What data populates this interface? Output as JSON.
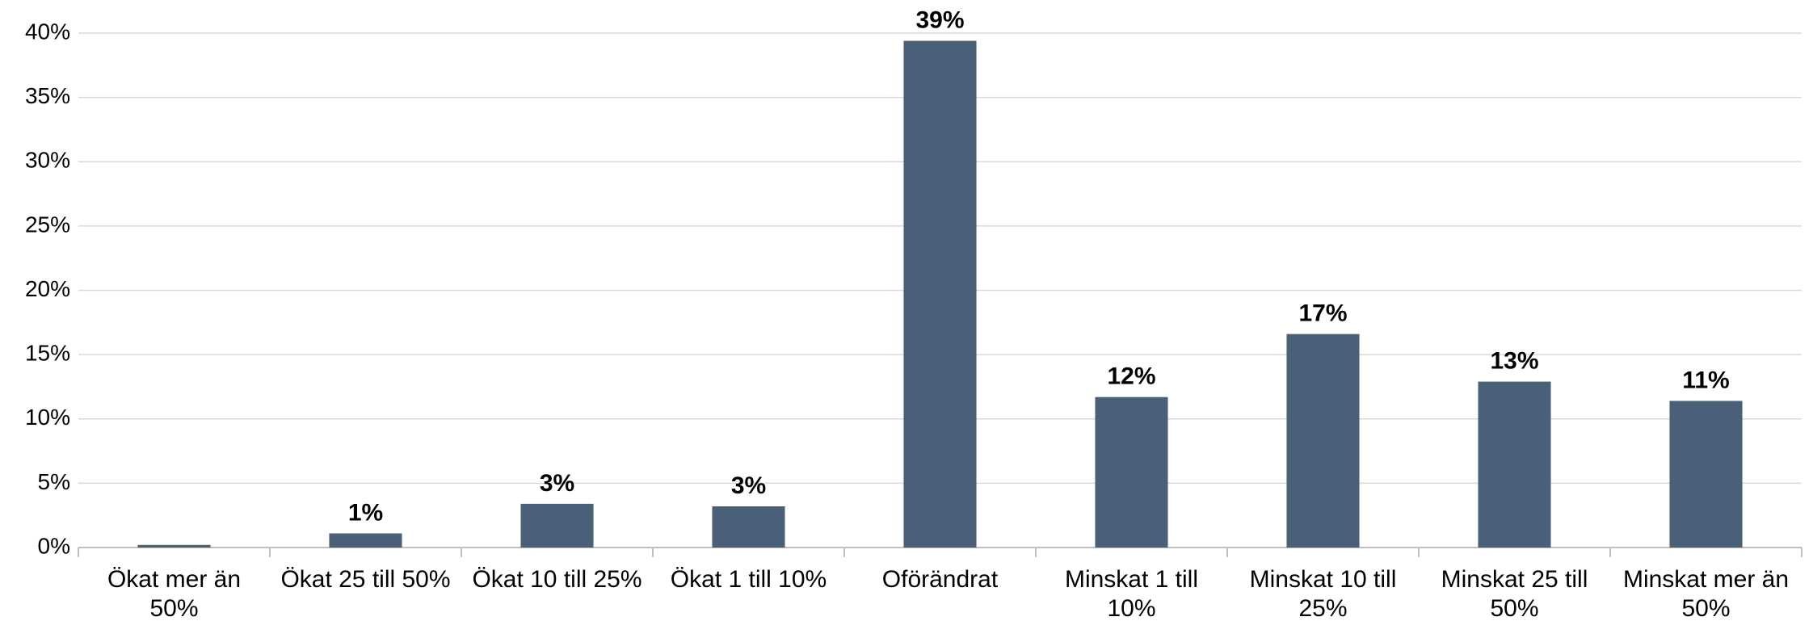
{
  "chart_data": {
    "type": "bar",
    "categories": [
      "Ökat mer än 50%",
      "Ökat 25 till 50%",
      "Ökat 10 till 25%",
      "Ökat 1 till 10%",
      "Oförändrat",
      "Minskat 1 till 10%",
      "Minskat 10 till 25%",
      "Minskat 25 till 50%",
      "Minskat mer än 50%"
    ],
    "values": [
      0.2,
      1.1,
      3.4,
      3.2,
      39.4,
      11.7,
      16.6,
      12.9,
      11.4
    ],
    "value_labels": [
      null,
      "1%",
      "3%",
      "3%",
      "39%",
      "12%",
      "17%",
      "13%",
      "11%"
    ],
    "color": "#4a5f78",
    "ylim": [
      0,
      40
    ],
    "yticks": [
      {
        "value": 0,
        "label": "0%"
      },
      {
        "value": 5,
        "label": "5%"
      },
      {
        "value": 10,
        "label": "10%"
      },
      {
        "value": 15,
        "label": "15%"
      },
      {
        "value": 20,
        "label": "20%"
      },
      {
        "value": 25,
        "label": "25%"
      },
      {
        "value": 30,
        "label": "30%"
      },
      {
        "value": 35,
        "label": "35%"
      },
      {
        "value": 40,
        "label": "40%"
      }
    ],
    "grid": true
  }
}
